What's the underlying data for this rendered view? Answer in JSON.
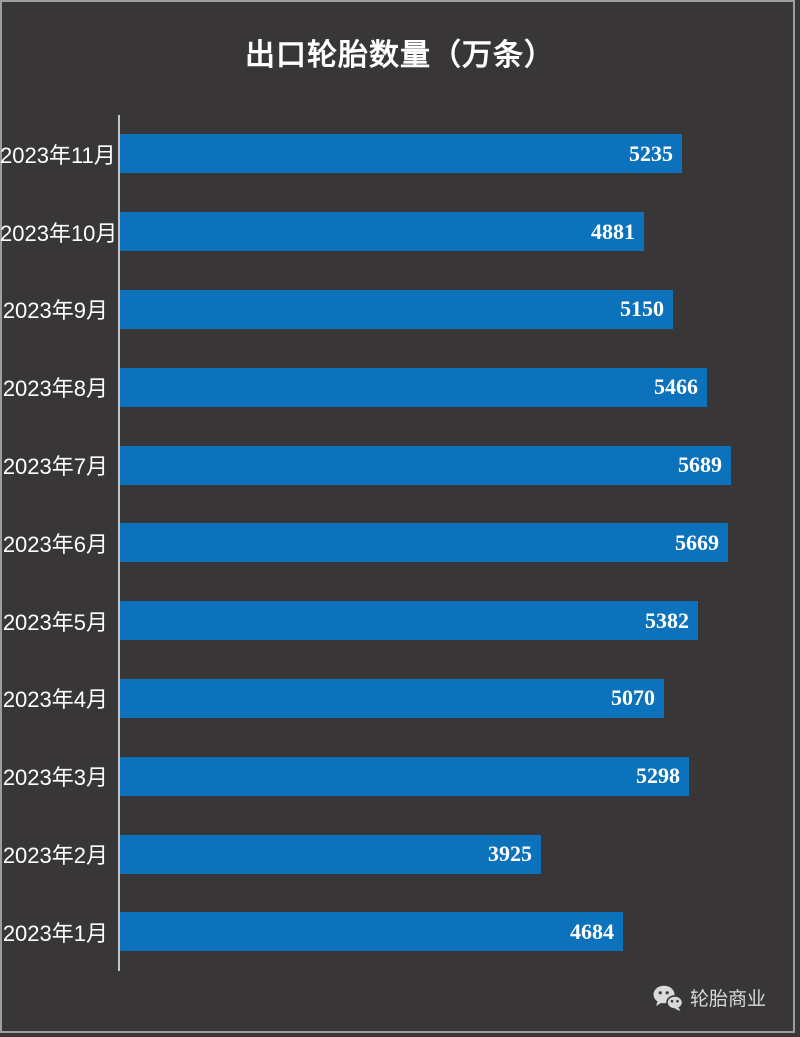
{
  "title": "出口轮胎数量（万条）",
  "chart_data": {
    "type": "bar",
    "orientation": "horizontal",
    "title": "出口轮胎数量（万条）",
    "categories": [
      "2023年11月",
      "2023年10月",
      "2023年9月",
      "2023年8月",
      "2023年7月",
      "2023年6月",
      "2023年5月",
      "2023年4月",
      "2023年3月",
      "2023年2月",
      "2023年1月"
    ],
    "values": [
      5235,
      4881,
      5150,
      5466,
      5689,
      5669,
      5382,
      5070,
      5298,
      3925,
      4684
    ],
    "xlabel": "",
    "ylabel": "",
    "xlim": [
      0,
      6000
    ],
    "grid": false,
    "legend": false,
    "value_labels": "inside-end"
  },
  "colors": {
    "background": "#383636",
    "bar": "#0d72bc",
    "text": "#ffffff",
    "axis_line": "#c4c4c4",
    "frame": "#9e9e9e",
    "watermark": "#d9d9d9"
  },
  "watermark": {
    "icon": "wechat-icon",
    "text": "轮胎商业"
  }
}
